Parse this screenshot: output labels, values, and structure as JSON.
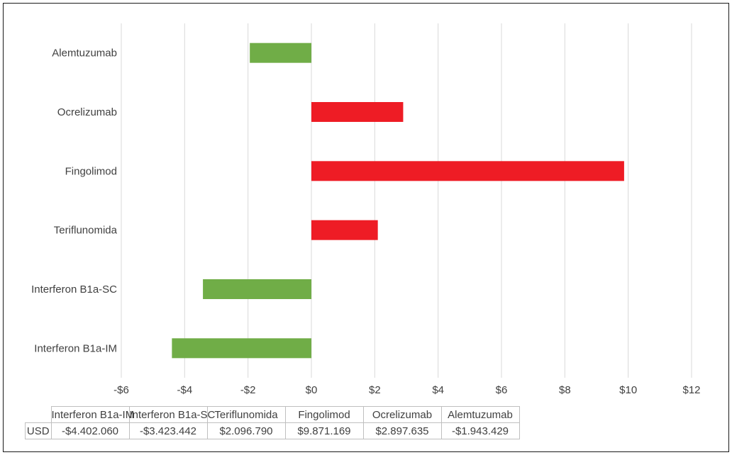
{
  "chart_data": {
    "type": "bar",
    "orientation": "horizontal",
    "categories": [
      "Alemtuzumab",
      "Ocrelizumab",
      "Fingolimod",
      "Teriflunomida",
      "Interferon B1a-SC",
      "Interferon B1a-IM"
    ],
    "values": [
      -1.943429,
      2.897635,
      9.871169,
      2.09679,
      -3.423442,
      -4.40206
    ],
    "x_ticks": [
      "-$6",
      "-$4",
      "-$2",
      "$0",
      "$2",
      "$4",
      "$6",
      "$8",
      "$10",
      "$12"
    ],
    "xlim": [
      -6,
      12
    ],
    "grid": true,
    "colors": {
      "negative": "#70ad47",
      "positive": "#ee1c25"
    },
    "table": {
      "row_label": "USD",
      "headers": [
        "Interferon B1a-IM",
        "Interferon B1a-SC",
        "Teriflunomida",
        "Fingolimod",
        "Ocrelizumab",
        "Alemtuzumab"
      ],
      "values": [
        "-$4.402.060",
        "-$3.423.442",
        "$2.096.790",
        "$9.871.169",
        "$2.897.635",
        "-$1.943.429"
      ]
    }
  }
}
